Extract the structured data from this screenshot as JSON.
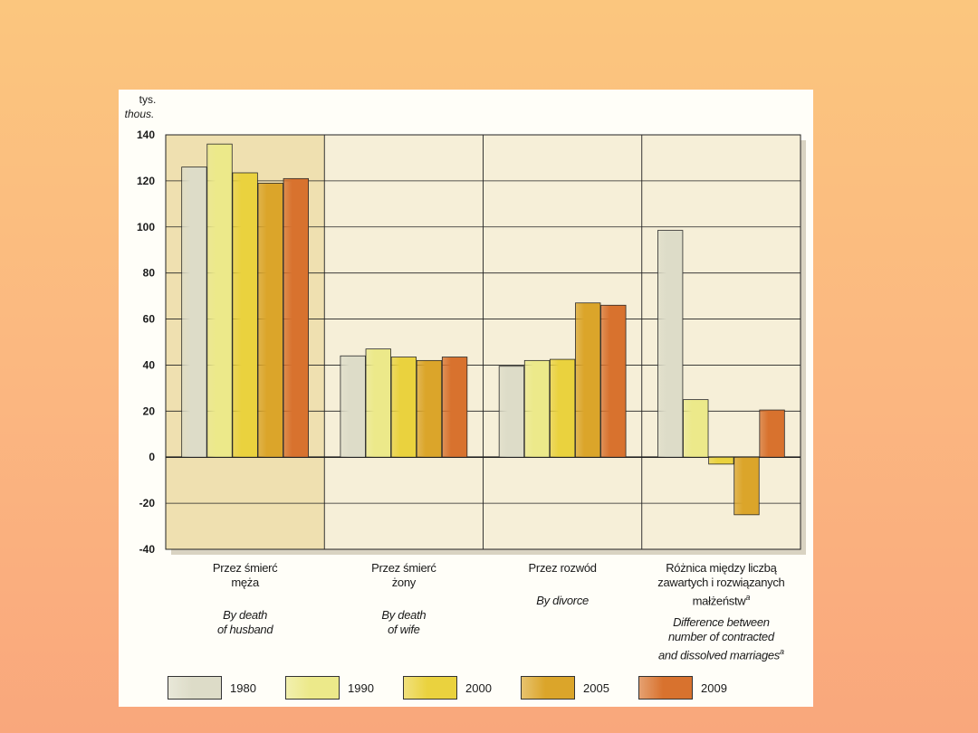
{
  "chart_data": {
    "type": "bar",
    "unit_label_pl": "tys.",
    "unit_label_en": "thous.",
    "ylim": [
      -40,
      140
    ],
    "yticks": [
      140,
      120,
      100,
      80,
      60,
      40,
      20,
      0,
      -20,
      -40
    ],
    "categories": [
      {
        "pl": "Przez  śmierć\nmęża",
        "en": "By death\nof husband"
      },
      {
        "pl": "Przez  śmierć\nżony",
        "en": "By death\nof wife"
      },
      {
        "pl": "Przez rozwód",
        "en": "By divorce"
      },
      {
        "pl": "Różnica między liczbą\nzawartych i rozwiązanych\nmałżeństw",
        "pl_sup": "a",
        "en": "Difference between\nnumber of contracted\nand dissolved marriages",
        "en_sup": "a"
      }
    ],
    "series": [
      {
        "name": "1980",
        "color": "#dddcc8",
        "values": [
          126,
          44,
          39.5,
          98.5
        ]
      },
      {
        "name": "1990",
        "color": "#ece98a",
        "values": [
          136,
          47,
          42,
          25
        ]
      },
      {
        "name": "2000",
        "color": "#ead23e",
        "values": [
          123.5,
          43.5,
          42.5,
          -3
        ]
      },
      {
        "name": "2005",
        "color": "#dba52a",
        "values": [
          119,
          42,
          67,
          -25
        ]
      },
      {
        "name": "2009",
        "color": "#d8722e",
        "values": [
          121,
          43.5,
          66,
          20.5
        ]
      }
    ]
  }
}
